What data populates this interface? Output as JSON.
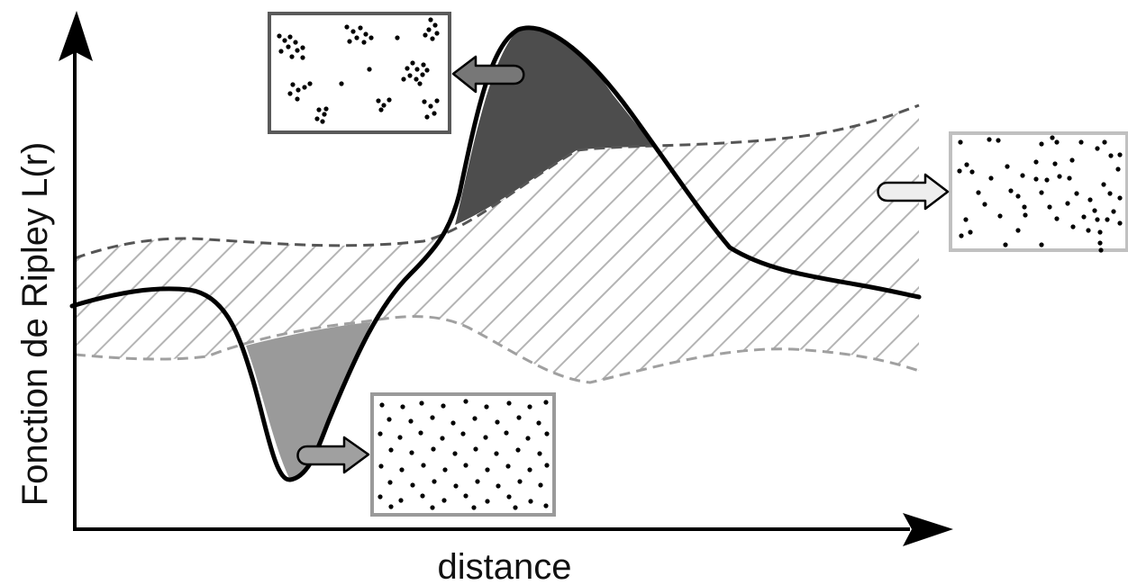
{
  "figure": {
    "y_axis_label": "Fonction de Ripley L(r)",
    "x_axis_label": "distance"
  },
  "colors": {
    "curve": "#000000",
    "envelope_hatch": "#b4b4b4",
    "envelope_upper_dash": "#555555",
    "envelope_lower_dash": "#a0a0a0",
    "aggregated_area": "#4d4d4d",
    "regular_area": "#9a9a9a",
    "aggregated_box_border": "#5a5a5a",
    "regular_box_border": "#9a9a9a",
    "random_box_border": "#c0c0c0",
    "aggregated_arrow": "#777777",
    "regular_arrow": "#a0a0a0",
    "random_arrow": "#eeeeee"
  },
  "insets": [
    {
      "id": "aggregated",
      "icon": "clustered-points"
    },
    {
      "id": "regular",
      "icon": "regular-points"
    },
    {
      "id": "random",
      "icon": "random-points"
    }
  ]
}
